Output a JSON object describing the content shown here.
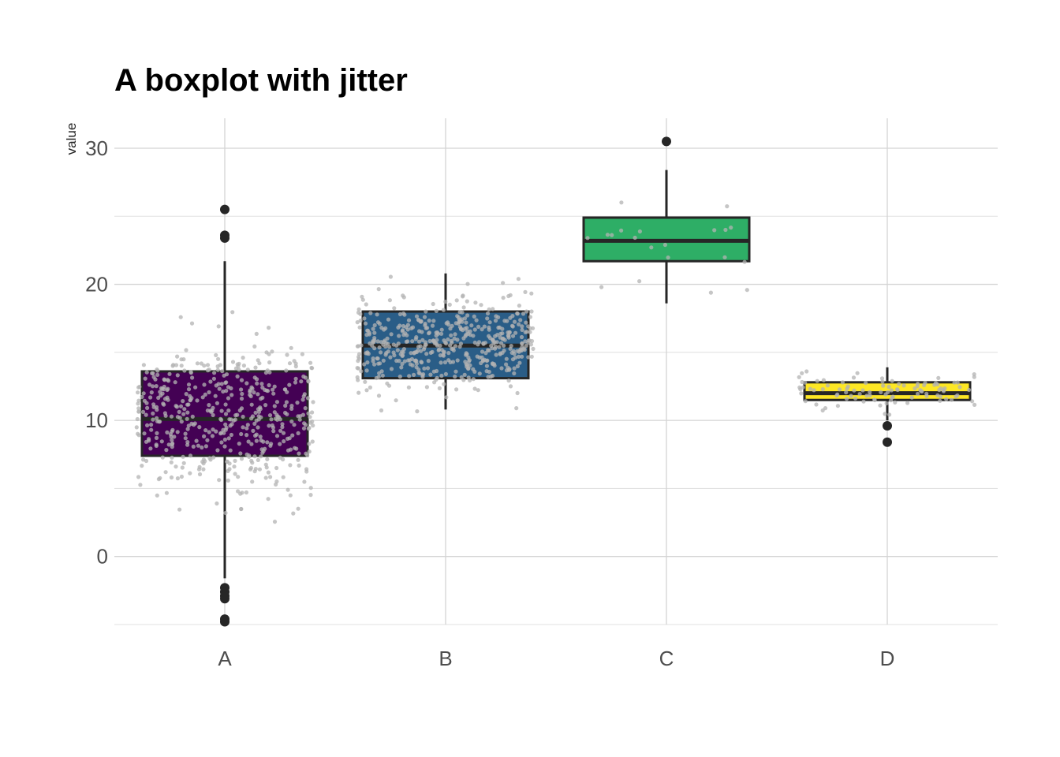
{
  "chart_data": {
    "type": "boxplot",
    "title": "A boxplot with jitter",
    "xlabel": "",
    "ylabel": "value",
    "categories": [
      "A",
      "B",
      "C",
      "D"
    ],
    "ylim": [
      -5,
      32.2
    ],
    "yticks": [
      0,
      10,
      20,
      30
    ],
    "grid": true,
    "legend": "none",
    "jitter_color": "#b3b3b3",
    "box_outline_color": "#262626",
    "series": [
      {
        "category": "A",
        "fill": "#440154",
        "q1": 7.4,
        "median": 10.1,
        "q3": 13.6,
        "whisker_low": -1.6,
        "whisker_high": 21.7,
        "outliers": [
          25.5,
          23.6,
          23.4,
          -2.3,
          -2.6,
          -2.9,
          -3.1,
          -4.6,
          -4.8
        ],
        "n_points": 500,
        "spread": 4.6,
        "center": 10.3
      },
      {
        "category": "B",
        "fill": "#2a5d87",
        "q1": 13.1,
        "median": 15.5,
        "q3": 18.0,
        "whisker_low": 10.8,
        "whisker_high": 20.8,
        "outliers": [],
        "n_points": 500,
        "spread": 2.8,
        "center": 15.5
      },
      {
        "category": "C",
        "fill": "#2eae66",
        "q1": 21.7,
        "median": 23.2,
        "q3": 24.9,
        "whisker_low": 18.6,
        "whisker_high": 28.4,
        "outliers": [
          30.5
        ],
        "n_points": 20,
        "spread": 2.8,
        "center": 23.3
      },
      {
        "category": "D",
        "fill": "#fde725",
        "q1": 11.5,
        "median": 12.0,
        "q3": 12.8,
        "whisker_low": 10.0,
        "whisker_high": 13.9,
        "outliers": [
          9.6,
          8.4
        ],
        "n_points": 100,
        "spread": 1.1,
        "center": 12.1
      }
    ]
  }
}
